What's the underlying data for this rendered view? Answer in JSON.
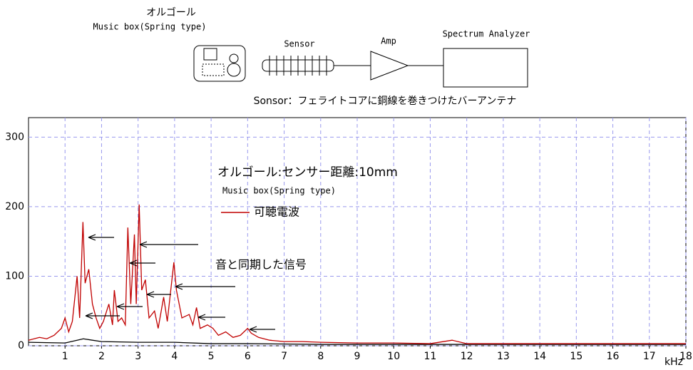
{
  "diagram": {
    "music_box_ja": "オルゴール",
    "music_box_en": "Music box(Spring type)",
    "sensor": "Sensor",
    "amp": "Amp",
    "analyzer": "Spectrum Analyzer",
    "sensor_note": "Sonsor：フェライトコアに銅線を巻きつけたバーアンテナ"
  },
  "chart_data": {
    "type": "line",
    "annotations": [
      "オルゴール:センサー距離:10mm",
      "Music box(Spring type)",
      "音と同期した信号",
      "kHz"
    ],
    "xlim": [
      0,
      18
    ],
    "xticks": [
      1,
      2,
      3,
      4,
      5,
      6,
      7,
      8,
      9,
      10,
      11,
      12,
      13,
      14,
      15,
      16,
      17,
      18
    ],
    "ylim": [
      0,
      328
    ],
    "yticks": [
      0,
      100,
      200,
      300
    ],
    "grid": true,
    "series": [
      {
        "name": "可聴電波",
        "color": "#c00000",
        "x": [
          0,
          0.3,
          0.5,
          0.7,
          0.9,
          1.0,
          1.1,
          1.2,
          1.33,
          1.4,
          1.49,
          1.55,
          1.65,
          1.75,
          1.85,
          1.95,
          2.05,
          2.2,
          2.3,
          2.35,
          2.45,
          2.55,
          2.65,
          2.72,
          2.8,
          2.9,
          2.95,
          3.03,
          3.1,
          3.2,
          3.3,
          3.45,
          3.55,
          3.7,
          3.8,
          3.98,
          4.05,
          4.2,
          4.4,
          4.5,
          4.6,
          4.7,
          4.9,
          5.05,
          5.2,
          5.4,
          5.6,
          5.8,
          6.0,
          6.1,
          6.3,
          6.6,
          7,
          7.5,
          8,
          9,
          10,
          11,
          11.6,
          12,
          13,
          14,
          15,
          16,
          17,
          18
        ],
        "values": [
          8,
          12,
          10,
          15,
          25,
          40,
          20,
          35,
          100,
          40,
          178,
          90,
          110,
          60,
          40,
          25,
          35,
          60,
          30,
          80,
          35,
          40,
          30,
          170,
          60,
          160,
          60,
          203,
          80,
          95,
          40,
          50,
          25,
          70,
          35,
          120,
          80,
          40,
          45,
          30,
          55,
          25,
          30,
          25,
          15,
          20,
          12,
          15,
          25,
          18,
          12,
          8,
          6,
          6,
          5,
          4,
          4,
          3,
          8,
          3,
          3,
          3,
          3,
          3,
          3,
          3
        ]
      },
      {
        "color": "#000000",
        "x": [
          0,
          1,
          1.5,
          2,
          3,
          4,
          5,
          6,
          8,
          10,
          12,
          14,
          16,
          18
        ],
        "values": [
          5,
          4,
          10,
          6,
          5,
          5,
          3,
          3,
          2,
          2,
          2,
          2,
          2,
          2
        ]
      }
    ]
  }
}
